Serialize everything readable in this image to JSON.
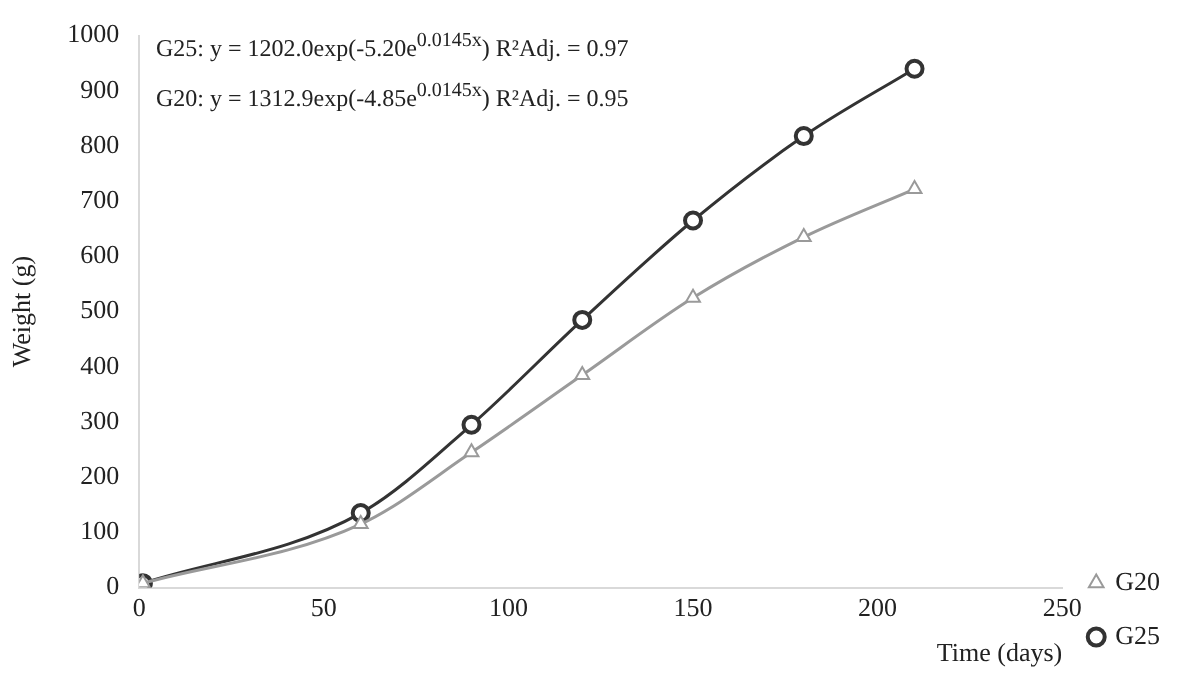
{
  "chart_data": {
    "type": "line",
    "xlabel": "Time (days)",
    "ylabel": "Weight (g)",
    "x": [
      1,
      60,
      90,
      120,
      150,
      180,
      210
    ],
    "series": [
      {
        "name": "G20",
        "color": "#9a9a9a",
        "marker": "triangle",
        "values": [
          8,
          115,
          245,
          385,
          525,
          635,
          722
        ]
      },
      {
        "name": "G25",
        "color": "#333333",
        "marker": "circle",
        "values": [
          8,
          135,
          295,
          485,
          665,
          818,
          940
        ]
      }
    ],
    "xlim": [
      0,
      250
    ],
    "xticks": [
      0,
      50,
      100,
      150,
      200,
      250
    ],
    "ylim": [
      0,
      1000
    ],
    "yticks": [
      0,
      100,
      200,
      300,
      400,
      500,
      600,
      700,
      800,
      900,
      1000
    ],
    "grid": false,
    "legend": "right",
    "annotations": [
      "G25: y = 1202.0exp(-5.20e$^{0.0145x}$) R²Adj. = 0.97",
      "G20: y = 1312.9exp(-4.85e$^{0.0145x}$) R²Adj. = 0.95"
    ]
  }
}
